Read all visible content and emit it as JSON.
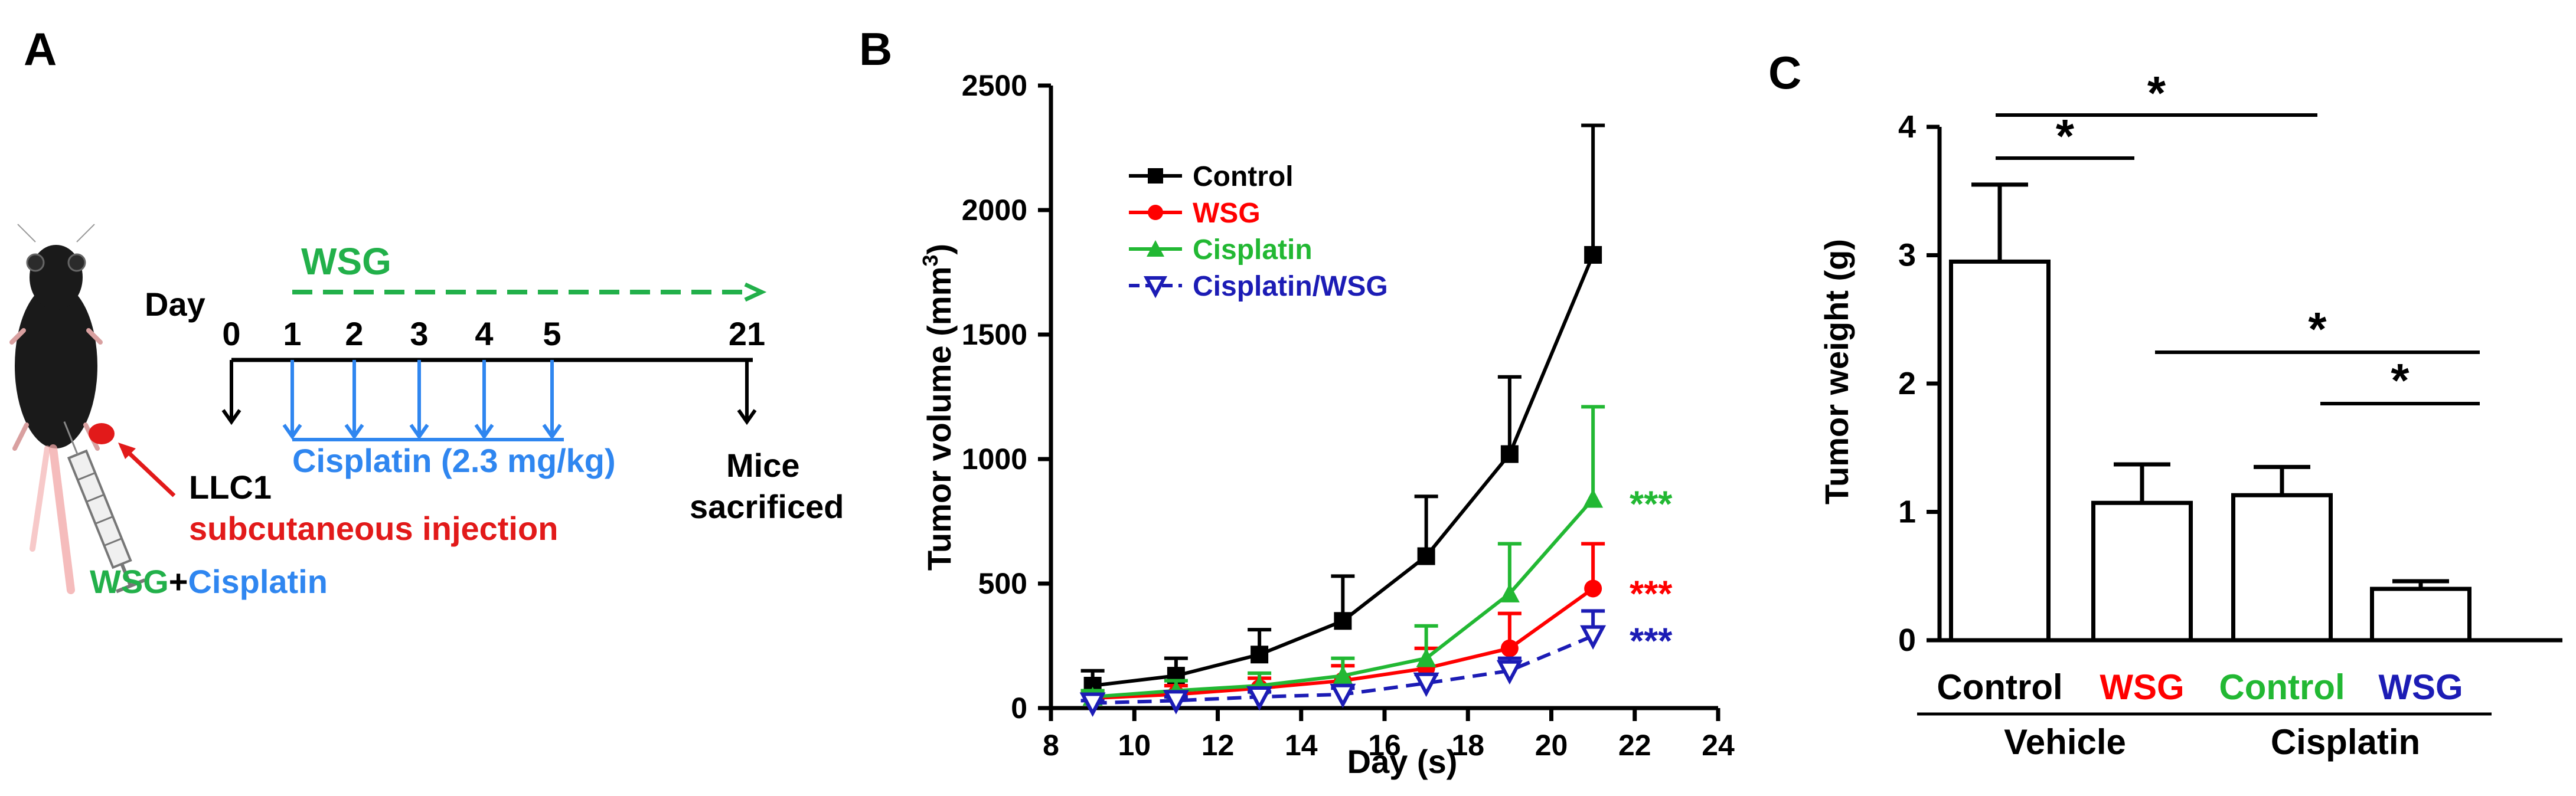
{
  "colors": {
    "black": "#000000",
    "red": "#ff0000",
    "green": "#22b833",
    "blue": "#1c1cb5",
    "cis_blue": "#2f86f0",
    "dash_green": "#22b04a"
  },
  "panel_a": {
    "label": "A",
    "day_word": "Day",
    "days": [
      "0",
      "1",
      "2",
      "3",
      "4",
      "5",
      "21"
    ],
    "wsg_label": "WSG",
    "cisplatin_label": "Cisplatin  (2.3 mg/kg)",
    "llc1": "LLC1",
    "injection": "subcutaneous injection",
    "mice_1": "Mice",
    "mice_2": "sacrificed",
    "legend_wsg": "WSG",
    "legend_plus": "+",
    "legend_cis": "Cisplatin"
  },
  "panel_b": {
    "label": "B"
  },
  "panel_c": {
    "label": "C"
  },
  "chart_data": [
    {
      "type": "line",
      "title": "",
      "xlabel": "Day (s)",
      "ylabel": "Tumor volume (mm",
      "ylabel_sup": "3",
      "ylabel_close": ")",
      "xlim": [
        8,
        24
      ],
      "ylim": [
        0,
        2500
      ],
      "xticks": [
        8,
        10,
        12,
        14,
        16,
        18,
        20,
        22,
        24
      ],
      "yticks": [
        0,
        500,
        1000,
        1500,
        2000,
        2500
      ],
      "x": [
        9,
        11,
        13,
        15,
        17,
        19,
        21
      ],
      "series": [
        {
          "name": "Control",
          "color": "#000000",
          "marker": "square",
          "dashed": false,
          "values": [
            90,
            130,
            215,
            350,
            610,
            1020,
            1820
          ],
          "errors": [
            60,
            70,
            100,
            180,
            240,
            310,
            520
          ]
        },
        {
          "name": "WSG",
          "color": "#ff0000",
          "marker": "circle",
          "dashed": false,
          "values": [
            40,
            55,
            80,
            110,
            160,
            240,
            480
          ],
          "errors": [
            30,
            35,
            40,
            60,
            80,
            140,
            180
          ]
        },
        {
          "name": "Cisplatin",
          "color": "#22b833",
          "marker": "triangle",
          "dashed": false,
          "values": [
            45,
            70,
            90,
            130,
            200,
            460,
            840
          ],
          "errors": [
            25,
            40,
            50,
            70,
            130,
            200,
            370
          ]
        },
        {
          "name": "Cisplatin/WSG",
          "color": "#1c1cb5",
          "marker": "triangle-down",
          "dashed": true,
          "values": [
            20,
            30,
            45,
            55,
            100,
            150,
            290
          ],
          "errors": [
            10,
            15,
            20,
            25,
            35,
            50,
            100
          ]
        }
      ],
      "annotations": [
        {
          "text": "***",
          "series": "Cisplatin"
        },
        {
          "text": "***",
          "series": "WSG"
        },
        {
          "text": "***",
          "series": "Cisplatin/WSG"
        }
      ]
    },
    {
      "type": "bar",
      "title": "",
      "xlabel": "",
      "ylabel": "Tumor weight (g)",
      "ylim": [
        0,
        4
      ],
      "yticks": [
        0,
        1,
        2,
        3,
        4
      ],
      "categories": [
        "Control",
        "WSG",
        "Control",
        "WSG"
      ],
      "category_colors": [
        "#000000",
        "#ff0000",
        "#22b833",
        "#1c1cb5"
      ],
      "groups": [
        "Vehicle",
        "Cisplatin"
      ],
      "values": [
        2.95,
        1.07,
        1.13,
        0.4
      ],
      "errors": [
        0.6,
        0.3,
        0.22,
        0.06
      ],
      "significance": [
        {
          "from": 0,
          "to": 1,
          "label": "*"
        },
        {
          "from": 0,
          "to": 2,
          "label": "*"
        },
        {
          "from": 1,
          "to": 3,
          "label": "*"
        },
        {
          "from": 2,
          "to": 3,
          "label": "*"
        }
      ]
    }
  ]
}
